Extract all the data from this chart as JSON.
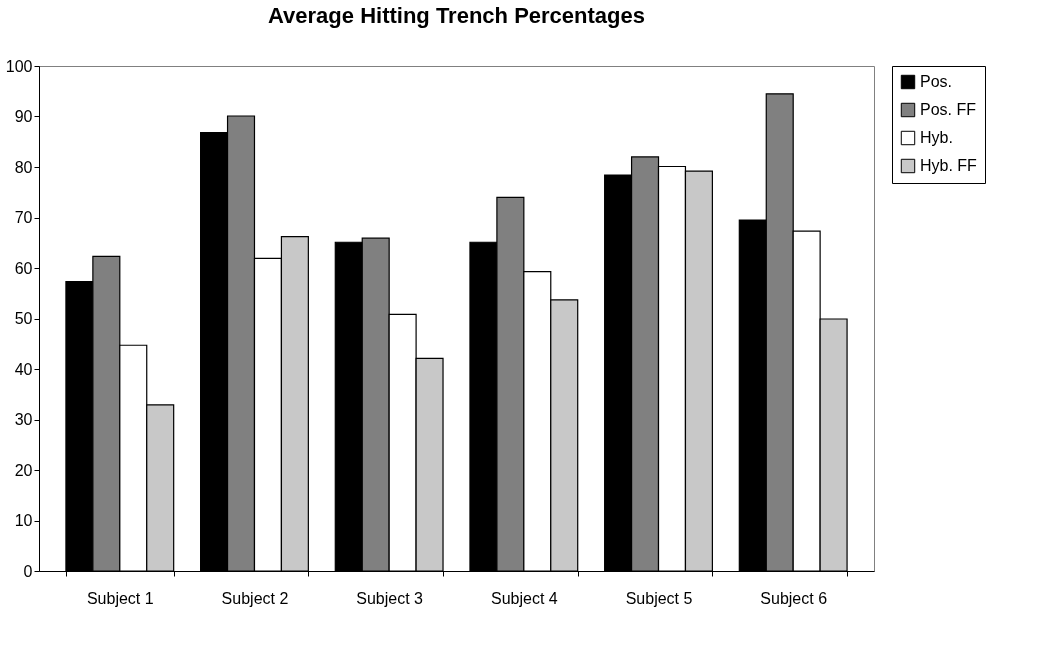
{
  "chart_data": {
    "type": "bar",
    "title": "Average Hitting Trench Percentages",
    "categories": [
      "Subject 1",
      "Subject 2",
      "Subject 3",
      "Subject 4",
      "Subject 5",
      "Subject 6"
    ],
    "series": [
      {
        "name": "Pos.",
        "color": "#000000",
        "values": [
          57.3,
          86.8,
          65.1,
          65.1,
          78.4,
          69.5
        ]
      },
      {
        "name": "Pos. FF",
        "color": "#808080",
        "values": [
          62.3,
          90.1,
          65.9,
          74.0,
          82.0,
          94.5
        ]
      },
      {
        "name": "Hyb.",
        "color": "#ffffff",
        "values": [
          44.7,
          61.9,
          50.8,
          59.3,
          80.1,
          67.3
        ]
      },
      {
        "name": "Hyb. FF",
        "color": "#c8c8c8",
        "values": [
          32.9,
          66.2,
          42.1,
          53.7,
          79.2,
          49.9
        ]
      }
    ],
    "ylim": [
      0,
      100
    ],
    "yticks": [
      0,
      10,
      20,
      30,
      40,
      50,
      60,
      70,
      80,
      90,
      100
    ],
    "grid": false,
    "legend": "right"
  }
}
